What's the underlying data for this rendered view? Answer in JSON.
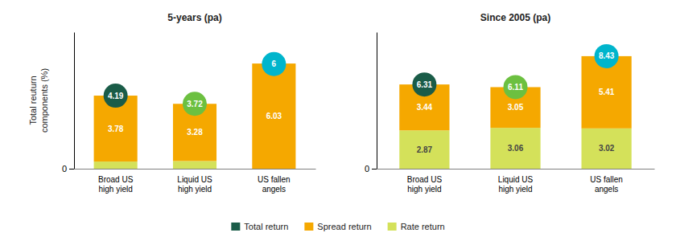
{
  "chart_data": [
    {
      "type": "bar",
      "title": "5-years (pa)",
      "y_label": "Total reuturn\ncomponents (%)",
      "categories": [
        "Broad US\nhigh yield",
        "Liquid US\nhigh yield",
        "US fallen\nangels"
      ],
      "stacked": true,
      "ylim": [
        0,
        7.83
      ],
      "yticks": [
        0
      ],
      "grid": false,
      "legend": "bottom",
      "series": [
        {
          "name": "Rate return",
          "color": "#d4e15a",
          "values": [
            0.41,
            0.44,
            0.0
          ],
          "data_labels": false
        },
        {
          "name": "Spread return",
          "color": "#f5a800",
          "values": [
            3.78,
            3.28,
            6.03
          ],
          "data_labels": true
        },
        {
          "name": "Total return",
          "type": "scatter",
          "marker": "circle",
          "color": "#1a5c48",
          "colors": [
            "#1a5c48",
            "#6cc040",
            "#00b5cc"
          ],
          "values": [
            4.19,
            3.72,
            6
          ],
          "data_labels": true
        }
      ]
    },
    {
      "type": "bar",
      "title": "Since 2005 (pa)",
      "categories": [
        "Broad US\nhigh yield",
        "Liquid US\nhigh yield",
        "US fallen\nangels"
      ],
      "stacked": true,
      "ylim": [
        0,
        10.23
      ],
      "yticks": [
        0
      ],
      "grid": false,
      "series": [
        {
          "name": "Rate return",
          "color": "#d4e15a",
          "values": [
            2.87,
            3.06,
            3.02
          ],
          "data_labels": true
        },
        {
          "name": "Spread return",
          "color": "#f5a800",
          "values": [
            3.44,
            3.05,
            5.41
          ],
          "data_labels": true
        },
        {
          "name": "Total return",
          "type": "scatter",
          "marker": "circle",
          "color": "#1a5c48",
          "colors": [
            "#1a5c48",
            "#6cc040",
            "#00b5cc"
          ],
          "values": [
            6.31,
            6.11,
            8.43
          ],
          "data_labels": true
        }
      ]
    }
  ]
}
